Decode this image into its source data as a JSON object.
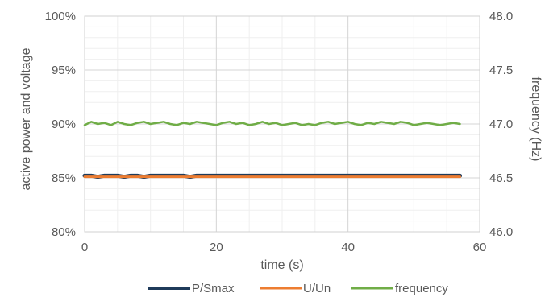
{
  "chart_data": {
    "type": "line",
    "title": "",
    "xlabel": "time (s)",
    "ylabel_left": "active power and voltage",
    "ylabel_right": "frequency (Hz)",
    "xlim": [
      0,
      60
    ],
    "ylim_left": [
      0.8,
      1.0
    ],
    "ylim_right": [
      46.0,
      48.0
    ],
    "x_ticks": [
      "0",
      "20",
      "40",
      "60"
    ],
    "y_left_ticks": [
      "80%",
      "85%",
      "90%",
      "95%",
      "100%"
    ],
    "y_right_ticks": [
      "46.0",
      "46.5",
      "47.0",
      "47.5",
      "48.0"
    ],
    "grid": true,
    "legend_position": "bottom",
    "series": [
      {
        "name": "P/Smax",
        "axis": "left",
        "color": "#1f3b5a",
        "x_start": 0,
        "x_end": 57,
        "values": [
          0.852,
          0.852,
          0.851,
          0.852,
          0.852,
          0.852,
          0.851,
          0.852,
          0.852,
          0.851,
          0.852,
          0.852,
          0.852,
          0.852,
          0.852,
          0.852,
          0.851,
          0.852,
          0.852,
          0.852,
          0.852,
          0.852,
          0.852,
          0.852,
          0.852,
          0.852,
          0.852,
          0.852,
          0.852,
          0.852,
          0.852,
          0.852,
          0.852,
          0.852,
          0.852,
          0.852,
          0.852,
          0.852,
          0.852,
          0.852,
          0.852,
          0.852,
          0.852,
          0.852,
          0.852,
          0.852,
          0.852,
          0.852,
          0.852,
          0.852,
          0.852,
          0.852,
          0.852,
          0.852,
          0.852,
          0.852,
          0.852,
          0.852
        ]
      },
      {
        "name": "U/Un",
        "axis": "left",
        "color": "#ed7d31",
        "x_start": 0,
        "x_end": 57,
        "values": [
          0.851,
          0.851,
          0.851,
          0.851,
          0.851,
          0.851,
          0.851,
          0.851,
          0.851,
          0.851,
          0.851,
          0.851,
          0.851,
          0.851,
          0.851,
          0.851,
          0.851,
          0.851,
          0.851,
          0.851,
          0.851,
          0.851,
          0.851,
          0.851,
          0.851,
          0.851,
          0.851,
          0.851,
          0.851,
          0.851,
          0.851,
          0.851,
          0.851,
          0.851,
          0.851,
          0.851,
          0.851,
          0.851,
          0.851,
          0.851,
          0.851,
          0.851,
          0.851,
          0.851,
          0.851,
          0.851,
          0.851,
          0.851,
          0.851,
          0.851,
          0.851,
          0.851,
          0.851,
          0.851,
          0.851,
          0.851,
          0.851,
          0.851
        ]
      },
      {
        "name": "frequency",
        "axis": "right",
        "color": "#70ad47",
        "x_start": 0,
        "x_end": 57,
        "values": [
          46.99,
          47.02,
          47.0,
          47.01,
          46.99,
          47.02,
          47.0,
          46.99,
          47.01,
          47.02,
          47.0,
          47.01,
          47.02,
          47.0,
          46.99,
          47.01,
          47.0,
          47.02,
          47.01,
          47.0,
          46.99,
          47.01,
          47.02,
          47.0,
          47.01,
          46.99,
          47.0,
          47.02,
          47.0,
          47.01,
          46.99,
          47.0,
          47.01,
          46.99,
          47.0,
          46.99,
          47.01,
          47.02,
          47.0,
          47.01,
          47.02,
          47.0,
          46.99,
          47.01,
          47.0,
          47.02,
          47.01,
          47.0,
          47.02,
          47.01,
          46.99,
          47.0,
          47.01,
          47.0,
          46.99,
          47.0,
          47.01,
          47.0
        ]
      }
    ]
  }
}
